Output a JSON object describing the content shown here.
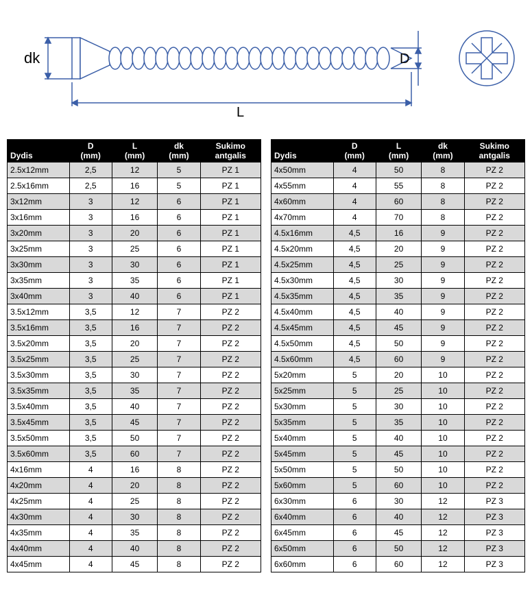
{
  "diagram": {
    "labels": {
      "dk": "dk",
      "D": "D",
      "L": "L"
    },
    "stroke": "#3b5fa8",
    "lineWidth": 1.5
  },
  "headers": [
    "Dydis",
    "D (mm)",
    "L (mm)",
    "dk (mm)",
    "Sukimo antgalis"
  ],
  "left": [
    [
      "2.5x12mm",
      "2,5",
      "12",
      "5",
      "PZ 1"
    ],
    [
      "2.5x16mm",
      "2,5",
      "16",
      "5",
      "PZ 1"
    ],
    [
      "3x12mm",
      "3",
      "12",
      "6",
      "PZ 1"
    ],
    [
      "3x16mm",
      "3",
      "16",
      "6",
      "PZ 1"
    ],
    [
      "3x20mm",
      "3",
      "20",
      "6",
      "PZ 1"
    ],
    [
      "3x25mm",
      "3",
      "25",
      "6",
      "PZ 1"
    ],
    [
      "3x30mm",
      "3",
      "30",
      "6",
      "PZ 1"
    ],
    [
      "3x35mm",
      "3",
      "35",
      "6",
      "PZ 1"
    ],
    [
      "3x40mm",
      "3",
      "40",
      "6",
      "PZ 1"
    ],
    [
      "3.5x12mm",
      "3,5",
      "12",
      "7",
      "PZ 2"
    ],
    [
      "3.5x16mm",
      "3,5",
      "16",
      "7",
      "PZ 2"
    ],
    [
      "3.5x20mm",
      "3,5",
      "20",
      "7",
      "PZ 2"
    ],
    [
      "3.5x25mm",
      "3,5",
      "25",
      "7",
      "PZ 2"
    ],
    [
      "3.5x30mm",
      "3,5",
      "30",
      "7",
      "PZ 2"
    ],
    [
      "3.5x35mm",
      "3,5",
      "35",
      "7",
      "PZ 2"
    ],
    [
      "3.5x40mm",
      "3,5",
      "40",
      "7",
      "PZ 2"
    ],
    [
      "3.5x45mm",
      "3,5",
      "45",
      "7",
      "PZ 2"
    ],
    [
      "3.5x50mm",
      "3,5",
      "50",
      "7",
      "PZ 2"
    ],
    [
      "3.5x60mm",
      "3,5",
      "60",
      "7",
      "PZ 2"
    ],
    [
      "4x16mm",
      "4",
      "16",
      "8",
      "PZ 2"
    ],
    [
      "4x20mm",
      "4",
      "20",
      "8",
      "PZ 2"
    ],
    [
      "4x25mm",
      "4",
      "25",
      "8",
      "PZ 2"
    ],
    [
      "4x30mm",
      "4",
      "30",
      "8",
      "PZ 2"
    ],
    [
      "4x35mm",
      "4",
      "35",
      "8",
      "PZ 2"
    ],
    [
      "4x40mm",
      "4",
      "40",
      "8",
      "PZ 2"
    ],
    [
      "4x45mm",
      "4",
      "45",
      "8",
      "PZ 2"
    ]
  ],
  "right": [
    [
      "4x50mm",
      "4",
      "50",
      "8",
      "PZ 2"
    ],
    [
      "4x55mm",
      "4",
      "55",
      "8",
      "PZ 2"
    ],
    [
      "4x60mm",
      "4",
      "60",
      "8",
      "PZ 2"
    ],
    [
      "4x70mm",
      "4",
      "70",
      "8",
      "PZ 2"
    ],
    [
      "4.5x16mm",
      "4,5",
      "16",
      "9",
      "PZ 2"
    ],
    [
      "4.5x20mm",
      "4,5",
      "20",
      "9",
      "PZ 2"
    ],
    [
      "4.5x25mm",
      "4,5",
      "25",
      "9",
      "PZ 2"
    ],
    [
      "4.5x30mm",
      "4,5",
      "30",
      "9",
      "PZ 2"
    ],
    [
      "4.5x35mm",
      "4,5",
      "35",
      "9",
      "PZ 2"
    ],
    [
      "4.5x40mm",
      "4,5",
      "40",
      "9",
      "PZ 2"
    ],
    [
      "4.5x45mm",
      "4,5",
      "45",
      "9",
      "PZ 2"
    ],
    [
      "4.5x50mm",
      "4,5",
      "50",
      "9",
      "PZ 2"
    ],
    [
      "4.5x60mm",
      "4,5",
      "60",
      "9",
      "PZ 2"
    ],
    [
      "5x20mm",
      "5",
      "20",
      "10",
      "PZ 2"
    ],
    [
      "5x25mm",
      "5",
      "25",
      "10",
      "PZ 2"
    ],
    [
      "5x30mm",
      "5",
      "30",
      "10",
      "PZ 2"
    ],
    [
      "5x35mm",
      "5",
      "35",
      "10",
      "PZ 2"
    ],
    [
      "5x40mm",
      "5",
      "40",
      "10",
      "PZ 2"
    ],
    [
      "5x45mm",
      "5",
      "45",
      "10",
      "PZ 2"
    ],
    [
      "5x50mm",
      "5",
      "50",
      "10",
      "PZ 2"
    ],
    [
      "5x60mm",
      "5",
      "60",
      "10",
      "PZ 2"
    ],
    [
      "6x30mm",
      "6",
      "30",
      "12",
      "PZ 3"
    ],
    [
      "6x40mm",
      "6",
      "40",
      "12",
      "PZ 3"
    ],
    [
      "6x45mm",
      "6",
      "45",
      "12",
      "PZ 3"
    ],
    [
      "6x50mm",
      "6",
      "50",
      "12",
      "PZ 3"
    ],
    [
      "6x60mm",
      "6",
      "60",
      "12",
      "PZ 3"
    ]
  ]
}
